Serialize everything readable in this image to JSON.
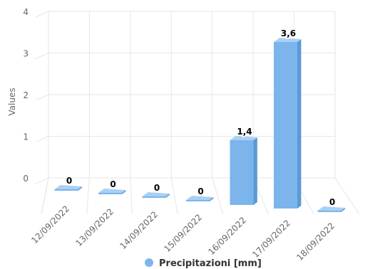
{
  "chart_data": {
    "type": "bar",
    "categories": [
      "12/09/2022",
      "13/09/2022",
      "14/09/2022",
      "15/09/2022",
      "16/09/2022",
      "17/09/2022",
      "18/09/2022"
    ],
    "series": [
      {
        "name": "Precipitazioni [mm]",
        "values": [
          0,
          0,
          0,
          0,
          1.4,
          3.6,
          0
        ],
        "data_labels": [
          "0",
          "0",
          "0",
          "0",
          "1,4",
          "3,6",
          "0"
        ],
        "color": "#7cb5ec"
      }
    ],
    "ylabel": "Values",
    "ylim": [
      0,
      4
    ],
    "yticks": [
      0,
      1,
      2,
      3,
      4
    ],
    "grid": true,
    "legend": "bottom-center",
    "three_d": true
  }
}
